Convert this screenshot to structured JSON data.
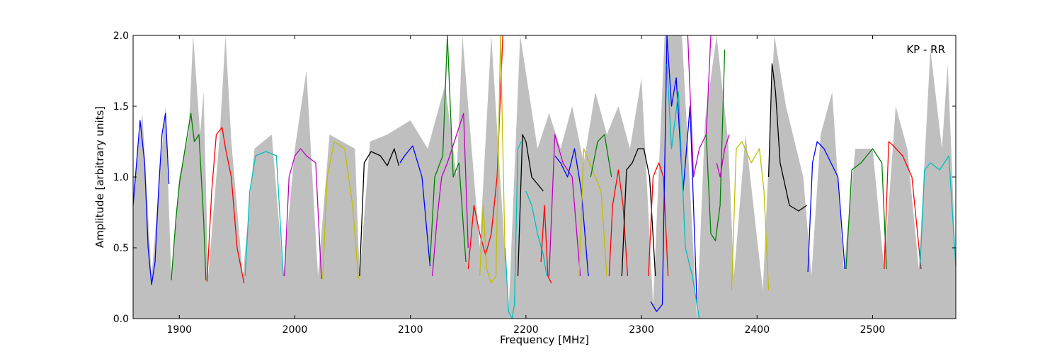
{
  "chart_data": {
    "type": "line",
    "annotation": "KP - RR",
    "xlabel": "Frequency [MHz]",
    "ylabel": "Amplitude [arbitrary units]",
    "xlim": [
      1860,
      2572
    ],
    "ylim": [
      0.0,
      2.0
    ],
    "xticks": [
      1900,
      2000,
      2100,
      2200,
      2300,
      2400,
      2500
    ],
    "xtick_labels": [
      "1900",
      "2000",
      "2100",
      "2200",
      "2300",
      "2400",
      "2500"
    ],
    "yticks": [
      0.0,
      0.5,
      1.0,
      1.5,
      2.0
    ],
    "ytick_labels": [
      "0.0",
      "0.5",
      "1.0",
      "1.5",
      "2.0"
    ],
    "grid": false,
    "envelope_color": "#bfbfbf",
    "envelope": [
      [
        1860,
        0.9
      ],
      [
        1868,
        1.45
      ],
      [
        1876,
        0.3
      ],
      [
        1888,
        1.5
      ],
      [
        1893,
        0.3
      ],
      [
        1900,
        1.0
      ],
      [
        1908,
        1.3
      ],
      [
        1912,
        2.0
      ],
      [
        1918,
        1.3
      ],
      [
        1921,
        1.6
      ],
      [
        1925,
        0.3
      ],
      [
        1935,
        1.3
      ],
      [
        1940,
        2.0
      ],
      [
        1945,
        1.25
      ],
      [
        1955,
        0.3
      ],
      [
        1965,
        1.2
      ],
      [
        1980,
        1.3
      ],
      [
        1990,
        0.3
      ],
      [
        2000,
        1.2
      ],
      [
        2010,
        1.75
      ],
      [
        2020,
        0.3
      ],
      [
        2030,
        1.3
      ],
      [
        2052,
        1.2
      ],
      [
        2056,
        0.3
      ],
      [
        2065,
        1.25
      ],
      [
        2080,
        1.3
      ],
      [
        2100,
        1.4
      ],
      [
        2115,
        1.2
      ],
      [
        2130,
        1.65
      ],
      [
        2140,
        1.0
      ],
      [
        2145,
        2.0
      ],
      [
        2160,
        0.5
      ],
      [
        2170,
        2.0
      ],
      [
        2185,
        0.05
      ],
      [
        2195,
        2.0
      ],
      [
        2210,
        1.2
      ],
      [
        2220,
        1.45
      ],
      [
        2230,
        1.2
      ],
      [
        2240,
        1.5
      ],
      [
        2250,
        1.1
      ],
      [
        2260,
        1.6
      ],
      [
        2270,
        1.3
      ],
      [
        2280,
        1.5
      ],
      [
        2290,
        1.2
      ],
      [
        2300,
        1.7
      ],
      [
        2310,
        0.1
      ],
      [
        2320,
        2.0
      ],
      [
        2335,
        2.0
      ],
      [
        2348,
        0.0
      ],
      [
        2355,
        1.4
      ],
      [
        2365,
        2.0
      ],
      [
        2375,
        1.25
      ],
      [
        2380,
        0.3
      ],
      [
        2390,
        1.3
      ],
      [
        2405,
        0.2
      ],
      [
        2415,
        2.0
      ],
      [
        2425,
        1.5
      ],
      [
        2440,
        1.0
      ],
      [
        2447,
        0.3
      ],
      [
        2455,
        1.3
      ],
      [
        2465,
        1.6
      ],
      [
        2475,
        0.35
      ],
      [
        2485,
        1.2
      ],
      [
        2500,
        1.2
      ],
      [
        2510,
        0.35
      ],
      [
        2520,
        1.5
      ],
      [
        2530,
        1.2
      ],
      [
        2540,
        0.35
      ],
      [
        2550,
        1.9
      ],
      [
        2560,
        1.2
      ],
      [
        2565,
        1.8
      ],
      [
        2572,
        0.4
      ]
    ],
    "series": [
      {
        "color": "#0000ff",
        "x": [
          1860,
          1866,
          1870,
          1873,
          1876,
          1879,
          1882,
          1885,
          1888,
          1891
        ],
        "y": [
          0.8,
          1.4,
          1.1,
          0.5,
          0.24,
          0.4,
          0.9,
          1.3,
          1.45,
          0.95
        ]
      },
      {
        "color": "#008000",
        "x": [
          1893,
          1897,
          1900,
          1905,
          1910,
          1913,
          1917,
          1921,
          1923
        ],
        "y": [
          0.27,
          0.7,
          0.95,
          1.2,
          1.45,
          1.25,
          1.3,
          0.7,
          0.27
        ]
      },
      {
        "color": "#ff0000",
        "x": [
          1924,
          1928,
          1932,
          1937,
          1940,
          1945,
          1950,
          1956
        ],
        "y": [
          0.26,
          0.9,
          1.3,
          1.35,
          1.2,
          1.0,
          0.5,
          0.25
        ]
      },
      {
        "color": "#00bfbf",
        "x": [
          1957,
          1961,
          1966,
          1975,
          1984,
          1990
        ],
        "y": [
          0.3,
          0.9,
          1.15,
          1.18,
          1.15,
          0.3
        ]
      },
      {
        "color": "#bf00bf",
        "x": [
          1991,
          1995,
          2000,
          2005,
          2010,
          2018,
          2023
        ],
        "y": [
          0.3,
          1.0,
          1.15,
          1.2,
          1.15,
          1.1,
          0.28
        ]
      },
      {
        "color": "#bfbf00",
        "x": [
          2024,
          2028,
          2034,
          2043,
          2050,
          2055
        ],
        "y": [
          0.28,
          1.0,
          1.25,
          1.2,
          0.8,
          0.28
        ]
      },
      {
        "color": "#000000",
        "x": [
          2056,
          2060,
          2066,
          2074,
          2080,
          2086,
          2090
        ],
        "y": [
          0.3,
          1.1,
          1.18,
          1.15,
          1.08,
          1.2,
          1.08
        ]
      },
      {
        "color": "#0000ff",
        "x": [
          2091,
          2095,
          2102,
          2110,
          2117
        ],
        "y": [
          1.1,
          1.15,
          1.22,
          1.0,
          0.37
        ]
      },
      {
        "color": "#008000",
        "x": [
          2117,
          2121,
          2128,
          2132,
          2137,
          2142,
          2148
        ],
        "y": [
          0.4,
          1.0,
          1.15,
          2.0,
          1.0,
          1.1,
          0.4
        ]
      },
      {
        "color": "#bf00bf",
        "x": [
          2119,
          2123,
          2127,
          2132,
          2140,
          2146,
          2150
        ],
        "y": [
          0.3,
          0.7,
          1.0,
          1.1,
          1.3,
          1.45,
          0.5
        ]
      },
      {
        "color": "#ff0000",
        "x": [
          2150,
          2155,
          2160,
          2165,
          2170,
          2175,
          2180
        ],
        "y": [
          0.35,
          0.8,
          0.6,
          0.45,
          0.6,
          1.0,
          2.0
        ]
      },
      {
        "color": "#bfbf00",
        "x": [
          2160,
          2163,
          2166,
          2170,
          2174,
          2178,
          2182
        ],
        "y": [
          0.3,
          0.8,
          0.35,
          0.25,
          0.3,
          2.0,
          0.4
        ]
      },
      {
        "color": "#00bfbf",
        "x": [
          2182,
          2185,
          2188,
          2190,
          2193,
          2196
        ],
        "y": [
          0.5,
          0.05,
          0.0,
          0.1,
          1.2,
          1.25
        ]
      },
      {
        "color": "#000000",
        "x": [
          2193,
          2197,
          2200,
          2205,
          2210,
          2215
        ],
        "y": [
          0.3,
          1.3,
          1.25,
          1.0,
          0.95,
          0.9
        ]
      },
      {
        "color": "#00bfbf",
        "x": [
          2200,
          2205,
          2210,
          2215,
          2218
        ],
        "y": [
          0.9,
          0.8,
          0.6,
          0.45,
          0.3
        ]
      },
      {
        "color": "#ff0000",
        "x": [
          2213,
          2216,
          2219,
          2222
        ],
        "y": [
          0.4,
          0.8,
          0.3,
          0.25
        ]
      },
      {
        "color": "#bf00bf",
        "x": [
          2220,
          2225,
          2232,
          2240,
          2247
        ],
        "y": [
          0.3,
          1.3,
          1.1,
          1.0,
          0.3
        ]
      },
      {
        "color": "#0000ff",
        "x": [
          2225,
          2230,
          2236,
          2242,
          2248,
          2254
        ],
        "y": [
          1.15,
          1.1,
          1.0,
          1.2,
          0.9,
          0.3
        ]
      },
      {
        "color": "#bfbf00",
        "x": [
          2246,
          2250,
          2255,
          2260,
          2265,
          2270
        ],
        "y": [
          0.3,
          1.2,
          1.1,
          1.0,
          0.9,
          0.3
        ]
      },
      {
        "color": "#008000",
        "x": [
          2256,
          2262,
          2268,
          2274
        ],
        "y": [
          1.0,
          1.25,
          1.3,
          1.0
        ]
      },
      {
        "color": "#ff0000",
        "x": [
          2272,
          2275,
          2280,
          2284,
          2288
        ],
        "y": [
          0.3,
          0.8,
          1.05,
          0.8,
          0.3
        ]
      },
      {
        "color": "#000000",
        "x": [
          2283,
          2287,
          2292,
          2297,
          2302,
          2307,
          2312
        ],
        "y": [
          0.3,
          1.05,
          1.1,
          1.2,
          1.2,
          1.0,
          0.3
        ]
      },
      {
        "color": "#ff0000",
        "x": [
          2306,
          2310,
          2315,
          2319,
          2323
        ],
        "y": [
          0.3,
          1.0,
          1.1,
          1.0,
          0.3
        ]
      },
      {
        "color": "#0000ff",
        "x": [
          2308,
          2313,
          2318,
          2322,
          2326,
          2330,
          2336,
          2342,
          2348
        ],
        "y": [
          0.12,
          0.05,
          0.1,
          2.0,
          1.5,
          1.7,
          0.9,
          1.5,
          0.1
        ]
      },
      {
        "color": "#00bfbf",
        "x": [
          2322,
          2326,
          2332,
          2338,
          2344,
          2350
        ],
        "y": [
          1.8,
          1.2,
          1.6,
          0.5,
          0.3,
          0.0
        ]
      },
      {
        "color": "#bf00bf",
        "x": [
          2340,
          2345,
          2350,
          2356,
          2360
        ],
        "y": [
          2.0,
          1.0,
          1.2,
          1.3,
          2.0
        ]
      },
      {
        "color": "#008000",
        "x": [
          2356,
          2360,
          2364,
          2368,
          2372
        ],
        "y": [
          1.3,
          0.6,
          0.55,
          0.8,
          1.9
        ]
      },
      {
        "color": "#bf00bf",
        "x": [
          2365,
          2368,
          2372,
          2376
        ],
        "y": [
          1.1,
          1.0,
          1.2,
          1.3
        ]
      },
      {
        "color": "#bfbf00",
        "x": [
          2378,
          2382,
          2387,
          2395,
          2402,
          2406,
          2410
        ],
        "y": [
          0.2,
          1.2,
          1.25,
          1.1,
          1.2,
          0.9,
          0.2
        ]
      },
      {
        "color": "#000000",
        "x": [
          2410,
          2413,
          2416,
          2420,
          2428,
          2436,
          2443
        ],
        "y": [
          1.0,
          1.8,
          1.6,
          1.1,
          0.8,
          0.76,
          0.8
        ]
      },
      {
        "color": "#0000ff",
        "x": [
          2444,
          2448,
          2452,
          2458,
          2464,
          2470,
          2476
        ],
        "y": [
          0.33,
          1.1,
          1.25,
          1.2,
          1.1,
          1.0,
          0.35
        ]
      },
      {
        "color": "#008000",
        "x": [
          2477,
          2482,
          2490,
          2500,
          2508,
          2512
        ],
        "y": [
          0.35,
          1.05,
          1.1,
          1.2,
          1.1,
          0.35
        ]
      },
      {
        "color": "#ff0000",
        "x": [
          2510,
          2514,
          2518,
          2526,
          2534,
          2542
        ],
        "y": [
          0.35,
          1.25,
          1.22,
          1.15,
          1.0,
          0.35
        ]
      },
      {
        "color": "#00bfbf",
        "x": [
          2541,
          2545,
          2550,
          2558,
          2566,
          2572
        ],
        "y": [
          0.35,
          1.05,
          1.1,
          1.05,
          1.15,
          0.37
        ]
      }
    ]
  }
}
